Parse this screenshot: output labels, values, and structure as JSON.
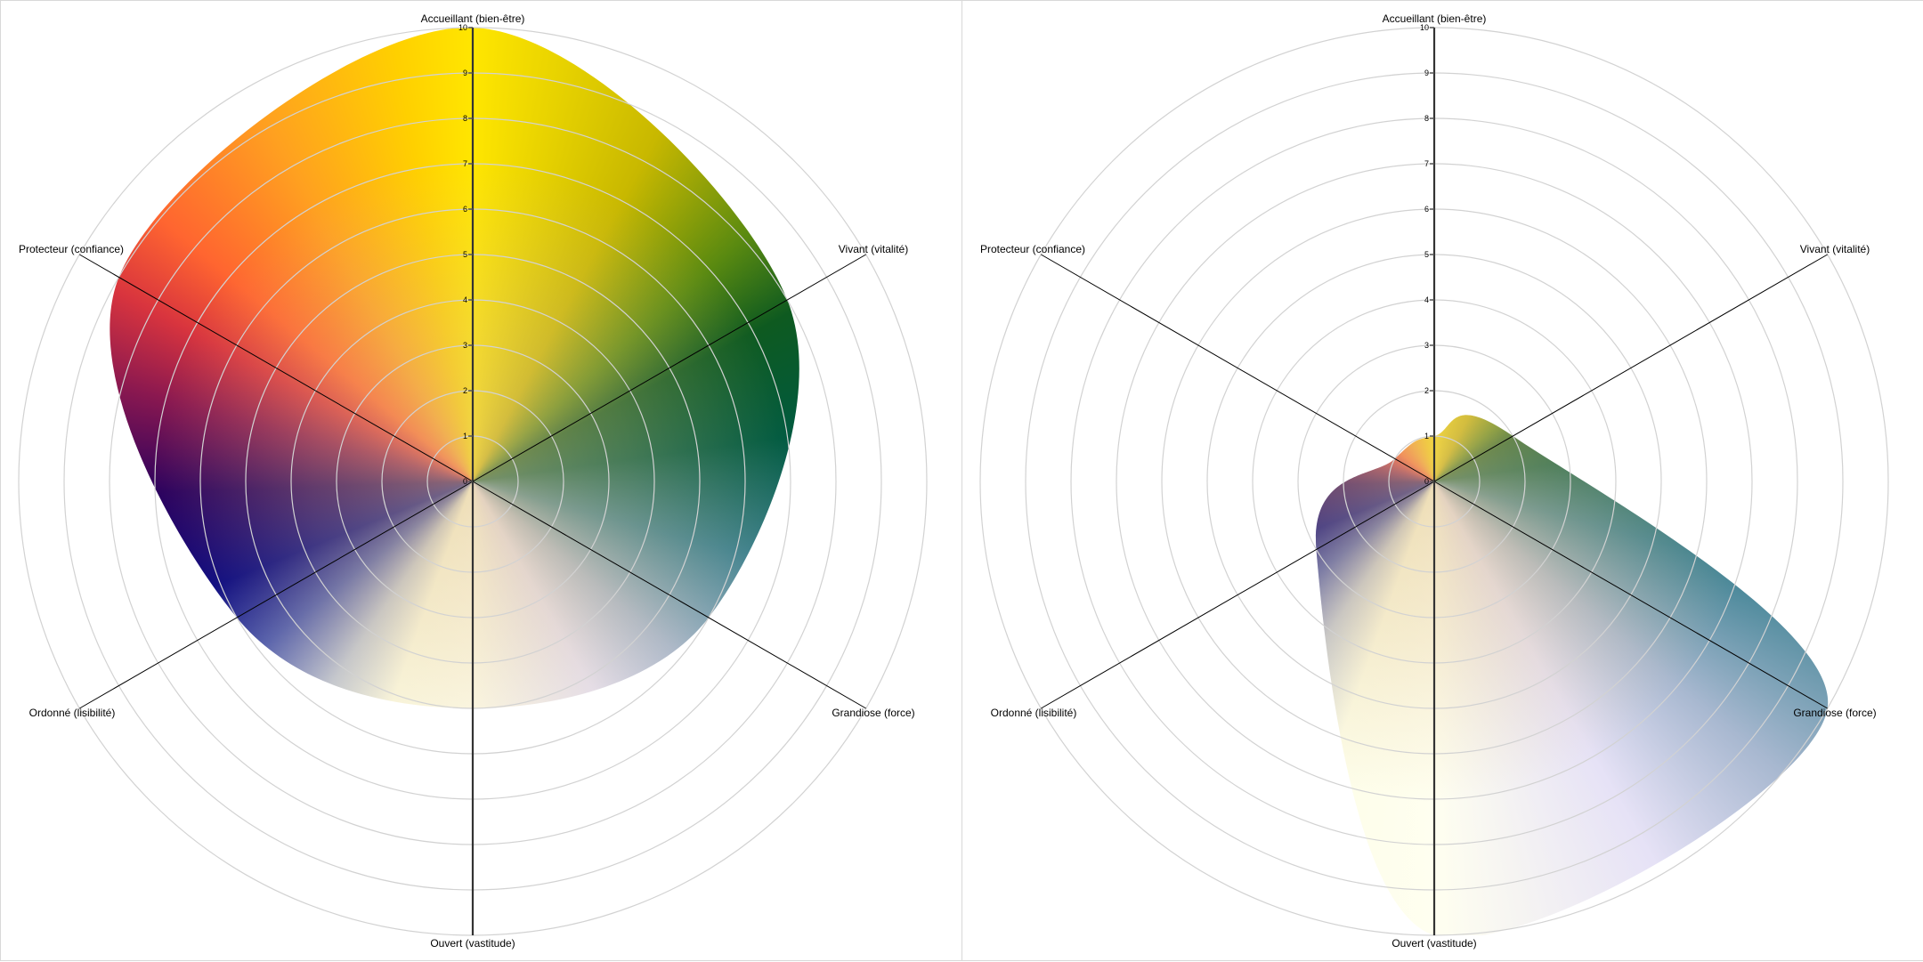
{
  "chart_data": [
    {
      "type": "radar",
      "axes": [
        "Accueillant (bien-être)",
        "Vivant (vitalité)",
        "Grandiose (force)",
        "Ouvert (vastitude)",
        "Ordonné (lisibilité)",
        "Protecteur (confiance)"
      ],
      "values": [
        10,
        8,
        6,
        5,
        6,
        9
      ],
      "rlim": [
        0,
        10
      ],
      "ticks": [
        "0",
        "1",
        "2",
        "3",
        "4",
        "5",
        "6",
        "7",
        "8",
        "9",
        "10"
      ],
      "grid": true,
      "curve": "smooth-closed",
      "fill": "angular color gradient"
    },
    {
      "type": "radar",
      "axes": [
        "Accueillant (bien-être)",
        "Vivant (vitalité)",
        "Grandiose (force)",
        "Ouvert (vastitude)",
        "Ordonné (lisibilité)",
        "Protecteur (confiance)"
      ],
      "values": [
        1,
        2,
        10,
        10,
        3,
        1
      ],
      "rlim": [
        0,
        10
      ],
      "ticks": [
        "0",
        "1",
        "2",
        "3",
        "4",
        "5",
        "6",
        "7",
        "8",
        "9",
        "10"
      ],
      "grid": true,
      "curve": "smooth-closed",
      "fill": "angular color gradient"
    }
  ],
  "colors": {
    "gradient_stops": [
      "#ffe600",
      "#c8b800",
      "#5a8a10",
      "#0e5a20",
      "#005a40",
      "#3a8090",
      "#a8b8d0",
      "#e6e2f6",
      "#fffff0",
      "#fdfde8",
      "#c0c8d8",
      "#4a58b0",
      "#000080",
      "#2a005e",
      "#8a1850",
      "#d8343e",
      "#ff6530",
      "#ffa020",
      "#ffd000",
      "#ffe600"
    ],
    "ring": "#d2d2d2",
    "axis": "#000000"
  }
}
